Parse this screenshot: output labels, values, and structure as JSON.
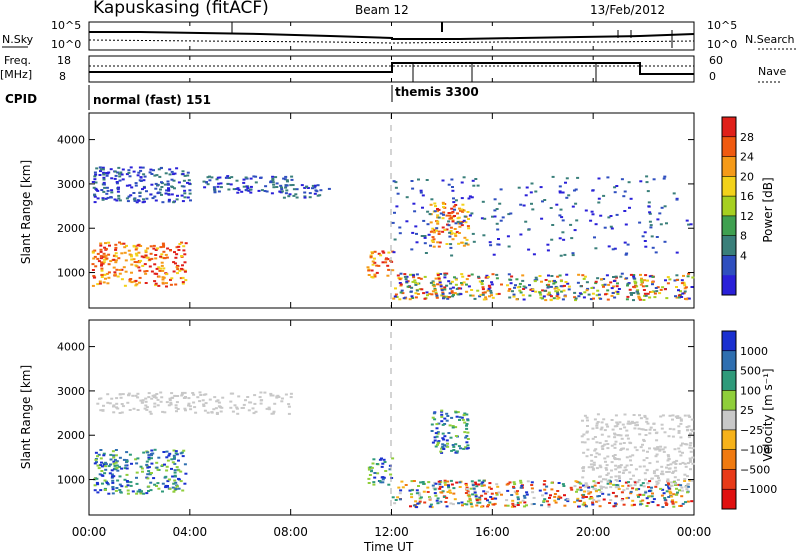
{
  "header": {
    "radar": "Kapuskasing (fitACF)",
    "beam": "Beam 12",
    "date": "13/Feb/2012"
  },
  "top_panels": {
    "nsky_label": "N.Sky",
    "nsky_ticks": [
      "10^5",
      "10^0"
    ],
    "nsearch_label": "N.Search",
    "nsearch_ticks": [
      "10^5",
      "10^0"
    ],
    "freq_label_1": "Freq.",
    "freq_label_2": "[MHz]",
    "freq_ticks": [
      "18",
      "8"
    ],
    "nave_label": "Nave",
    "nave_ticks": [
      "60",
      "0"
    ],
    "cpid_label": "CPID",
    "cpid_modes": [
      {
        "name": "normal (fast) 151",
        "start": 0
      },
      {
        "name": "themis 3300",
        "start": 12
      }
    ]
  },
  "xaxis": {
    "title": "Time UT",
    "ticks": [
      "00:00",
      "04:00",
      "08:00",
      "12:00",
      "16:00",
      "20:00",
      "00:00"
    ]
  },
  "chart_data": [
    {
      "type": "heatmap",
      "title": "",
      "xlabel": "Time UT",
      "ylabel": "Slant Range [km]",
      "xlim": [
        0,
        24
      ],
      "ylim": [
        200,
        4600
      ],
      "yticks": [
        "4000",
        "3000",
        "2000",
        "1000"
      ],
      "colorbar": {
        "label": "Power [dB]",
        "ticks": [
          "28",
          "24",
          "20",
          "16",
          "12",
          "8",
          "4"
        ],
        "colors": [
          "#e0201a",
          "#f05a10",
          "#f59a18",
          "#f3d21a",
          "#a6d020",
          "#3fa050",
          "#3a7f7a",
          "#2f4fbf",
          "#2a20d8"
        ]
      },
      "regions": [
        {
          "t": [
            0.1,
            3.8
          ],
          "r": [
            700,
            1700
          ],
          "level": "high"
        },
        {
          "t": [
            0.1,
            4.0
          ],
          "r": [
            2600,
            3400
          ],
          "level": "low"
        },
        {
          "t": [
            4.5,
            8.0
          ],
          "r": [
            2800,
            3200
          ],
          "level": "low"
        },
        {
          "t": [
            7.5,
            9.5
          ],
          "r": [
            2700,
            3000
          ],
          "level": "low"
        },
        {
          "t": [
            11.0,
            12.0
          ],
          "r": [
            900,
            1500
          ],
          "level": "high"
        },
        {
          "t": [
            12.0,
            23.9
          ],
          "r": [
            400,
            1000
          ],
          "level": "mixed"
        },
        {
          "t": [
            13.5,
            15.0
          ],
          "r": [
            1600,
            2600
          ],
          "level": "high"
        },
        {
          "t": [
            12.0,
            23.9
          ],
          "r": [
            1400,
            3200
          ],
          "level": "sparse"
        }
      ]
    },
    {
      "type": "heatmap",
      "title": "",
      "xlabel": "Time UT",
      "ylabel": "Slant Range [km]",
      "xlim": [
        0,
        24
      ],
      "ylim": [
        200,
        4600
      ],
      "yticks": [
        "4000",
        "3000",
        "2000",
        "1000"
      ],
      "colorbar": {
        "label": "Velocity [m s⁻¹]",
        "ticks": [
          "1000",
          "500",
          "100",
          "25",
          "−25",
          "−100",
          "−500",
          "−1000"
        ],
        "colors": [
          "#1a30d0",
          "#2f6fb0",
          "#2f9a7a",
          "#8fce3a",
          "#c8c8c8",
          "#f6b21a",
          "#f07a10",
          "#e83a18",
          "#e01010"
        ]
      },
      "regions": [
        {
          "t": [
            0.1,
            3.8
          ],
          "r": [
            700,
            1700
          ],
          "level": "high"
        },
        {
          "t": [
            0.1,
            8.0
          ],
          "r": [
            2500,
            3000
          ],
          "level": "ground"
        },
        {
          "t": [
            11.0,
            12.0
          ],
          "r": [
            900,
            1500
          ],
          "level": "high"
        },
        {
          "t": [
            12.0,
            23.9
          ],
          "r": [
            400,
            1000
          ],
          "level": "mixed"
        },
        {
          "t": [
            13.5,
            15.0
          ],
          "r": [
            1600,
            2600
          ],
          "level": "high"
        },
        {
          "t": [
            19.5,
            23.9
          ],
          "r": [
            800,
            2500
          ],
          "level": "ground"
        }
      ]
    }
  ]
}
